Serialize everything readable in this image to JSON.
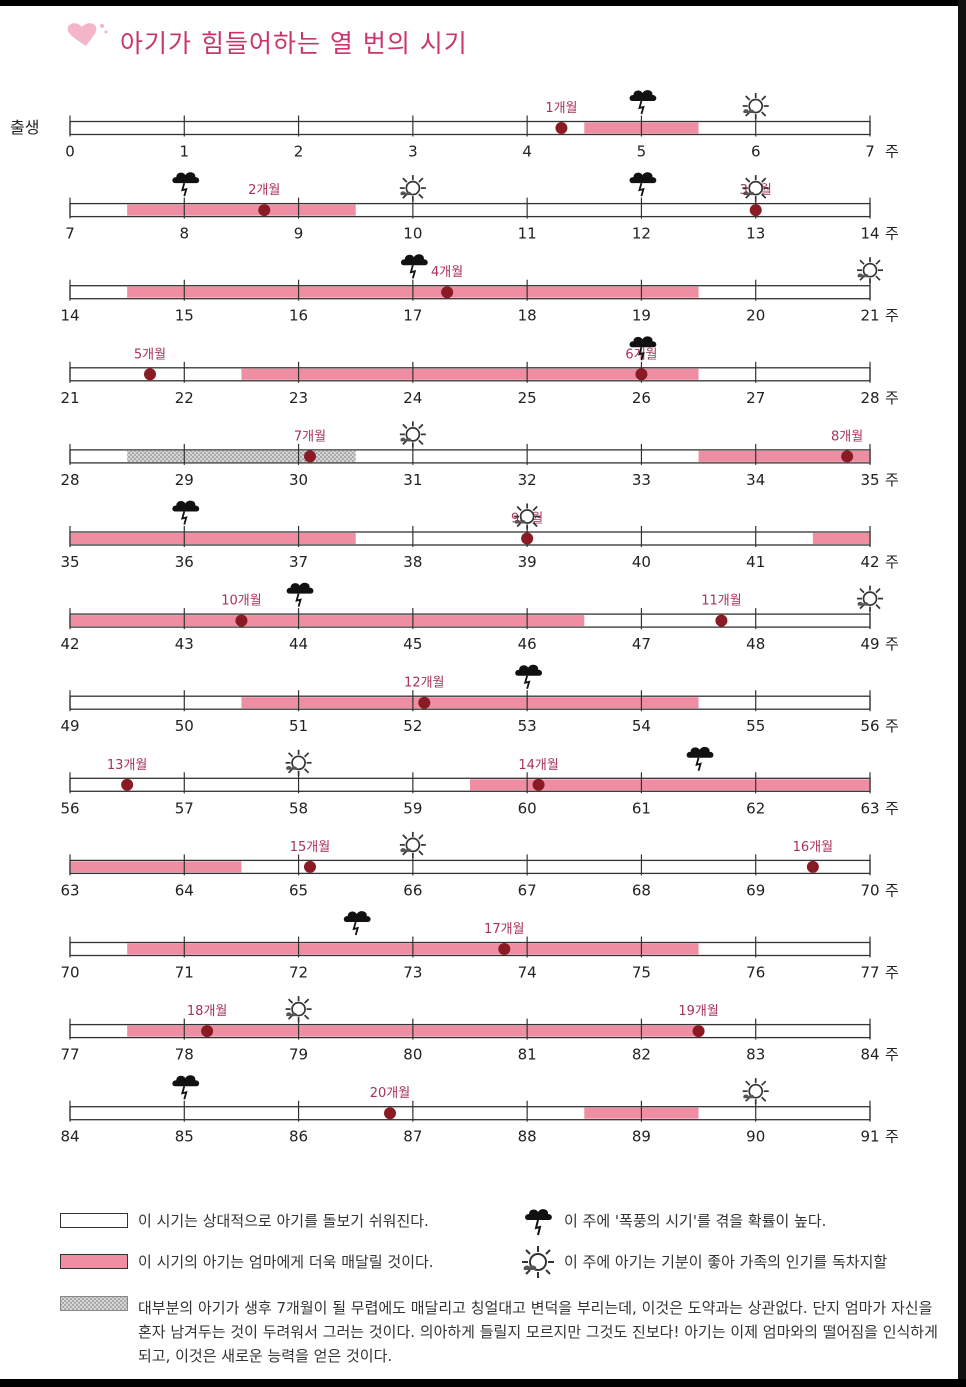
{
  "title": "아기가 힘들어하는 열 번의 시기",
  "start_label": "출생",
  "week_unit": "주",
  "colors": {
    "pink": "#ef8ea3",
    "stripe": "#bdbdbd",
    "dot": "#8a1b24",
    "title": "#c8366b",
    "label": "#a8325a"
  },
  "icons": {
    "storm": "storm-cloud-icon",
    "sunny": "sun-icon"
  },
  "timeline": {
    "weeks_per_row": 7,
    "rows": [
      {
        "start": 0,
        "pink": [
          [
            4.5,
            5.5
          ]
        ],
        "stripe": [],
        "months": [
          {
            "week": 4.3,
            "label": "1개월"
          }
        ],
        "storms": [
          5
        ],
        "suns": [
          6
        ]
      },
      {
        "start": 7,
        "pink": [
          [
            7.5,
            9.5
          ]
        ],
        "stripe": [],
        "months": [
          {
            "week": 8.7,
            "label": "2개월"
          },
          {
            "week": 13,
            "label": "3개월"
          }
        ],
        "storms": [
          8,
          12
        ],
        "suns": [
          10,
          13
        ]
      },
      {
        "start": 14,
        "pink": [
          [
            14.5,
            19.5
          ]
        ],
        "stripe": [],
        "months": [
          {
            "week": 17.3,
            "label": "4개월"
          }
        ],
        "storms": [
          17
        ],
        "suns": [
          21
        ]
      },
      {
        "start": 21,
        "pink": [
          [
            22.5,
            26.5
          ]
        ],
        "stripe": [],
        "months": [
          {
            "week": 21.7,
            "label": "5개월"
          },
          {
            "week": 26,
            "label": "6개월"
          }
        ],
        "storms": [
          26
        ],
        "suns": []
      },
      {
        "start": 28,
        "pink": [
          [
            33.5,
            35
          ]
        ],
        "stripe": [
          [
            28.5,
            30.5
          ]
        ],
        "months": [
          {
            "week": 30.1,
            "label": "7개월"
          },
          {
            "week": 34.8,
            "label": "8개월"
          }
        ],
        "storms": [],
        "suns": [
          31
        ]
      },
      {
        "start": 35,
        "pink": [
          [
            35,
            37.5
          ],
          [
            41.5,
            42
          ]
        ],
        "stripe": [],
        "months": [
          {
            "week": 39,
            "label": "9개월"
          }
        ],
        "storms": [
          36
        ],
        "suns": [
          39
        ]
      },
      {
        "start": 42,
        "pink": [
          [
            42,
            46.5
          ]
        ],
        "stripe": [],
        "months": [
          {
            "week": 43.5,
            "label": "10개월"
          },
          {
            "week": 47.7,
            "label": "11개월"
          }
        ],
        "storms": [
          44
        ],
        "suns": [
          49
        ]
      },
      {
        "start": 49,
        "pink": [
          [
            50.5,
            54.5
          ]
        ],
        "stripe": [],
        "months": [
          {
            "week": 52.1,
            "label": "12개월"
          }
        ],
        "storms": [
          53
        ],
        "suns": []
      },
      {
        "start": 56,
        "pink": [
          [
            59.5,
            63
          ]
        ],
        "stripe": [],
        "months": [
          {
            "week": 56.5,
            "label": "13개월"
          },
          {
            "week": 60.1,
            "label": "14개월"
          }
        ],
        "storms": [
          61.5
        ],
        "suns": [
          58
        ]
      },
      {
        "start": 63,
        "pink": [
          [
            63,
            64.5
          ]
        ],
        "stripe": [],
        "months": [
          {
            "week": 65.1,
            "label": "15개월"
          },
          {
            "week": 69.5,
            "label": "16개월"
          }
        ],
        "storms": [],
        "suns": [
          66
        ]
      },
      {
        "start": 70,
        "pink": [
          [
            70.5,
            75.5
          ]
        ],
        "stripe": [],
        "months": [
          {
            "week": 73.8,
            "label": "17개월"
          }
        ],
        "storms": [
          72.5
        ],
        "suns": []
      },
      {
        "start": 77,
        "pink": [
          [
            77.5,
            82.5
          ]
        ],
        "stripe": [],
        "months": [
          {
            "week": 78.2,
            "label": "18개월"
          },
          {
            "week": 82.5,
            "label": "19개월"
          }
        ],
        "storms": [],
        "suns": [
          79
        ]
      },
      {
        "start": 84,
        "pink": [
          [
            88.5,
            89.5
          ]
        ],
        "stripe": [],
        "months": [
          {
            "week": 86.8,
            "label": "20개월"
          }
        ],
        "storms": [
          85
        ],
        "suns": [
          90
        ]
      }
    ]
  },
  "legend": {
    "easy": "이 시기는 상대적으로 아기를 돌보기 쉬워진다.",
    "clingy": "이 시기의 아기는 엄마에게 더욱 매달릴 것이다.",
    "storm": "이 주에 '폭풍의 시기'를 겪을 확률이 높다.",
    "sunny": "이 주에 아기는 기분이 좋아 가족의 인기를 독차지할",
    "note": "대부분의 아기가 생후 7개월이 될 무렵에도 매달리고 칭얼대고 변덕을 부리는데, 이것은 도약과는 상관없다. 단지 엄마가 자신을 혼자 남겨두는 것이 두려워서 그러는 것이다. 의아하게 들릴지 모르지만 그것도 진보다! 아기는 이제 엄마와의 떨어짐을 인식하게 되고, 이것은 새로운 능력을 얻은 것이다."
  }
}
